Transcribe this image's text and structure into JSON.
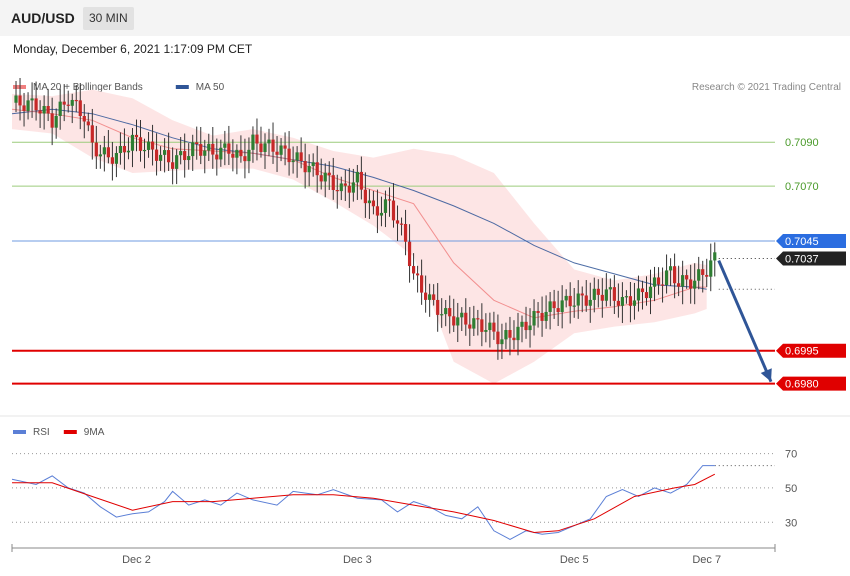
{
  "header": {
    "pair": "AUD/USD",
    "timeframe": "30 MIN",
    "timestamp": "Monday, December 6, 2021 1:17:09 PM CET"
  },
  "legend": {
    "main": [
      {
        "label": "MA 20 + Bollinger Bands",
        "color": "#f08080"
      },
      {
        "label": "MA 50",
        "color": "#2f5597"
      }
    ],
    "rsi": [
      {
        "label": "RSI",
        "color": "#5b7fd6"
      },
      {
        "label": "9MA",
        "color": "#e00000"
      }
    ]
  },
  "copyright": "Research © 2021 Trading Central",
  "chart_data": [
    {
      "type": "candlestick",
      "ylim": [
        0.6968,
        0.7122
      ],
      "levels": [
        {
          "value": 0.709,
          "label": "0.7090",
          "color": "#9ccc7c",
          "kind": "resistance"
        },
        {
          "value": 0.707,
          "label": "0.7070",
          "color": "#9ccc7c",
          "kind": "resistance"
        },
        {
          "value": 0.7045,
          "label": "0.7045",
          "color": "#6f9be0",
          "kind": "pivot",
          "tag_color": "#2b6de0"
        },
        {
          "value": 0.7037,
          "label": "0.7037",
          "color": "#222222",
          "kind": "last",
          "tag_color": "#222222"
        },
        {
          "value": 0.6995,
          "label": "0.6995",
          "color": "#e00000",
          "kind": "support",
          "tag_color": "#e00000"
        },
        {
          "value": 0.698,
          "label": "0.6980",
          "color": "#e00000",
          "kind": "support",
          "tag_color": "#e00000"
        }
      ],
      "close_path": [
        [
          0,
          0.7108
        ],
        [
          6,
          0.7107
        ],
        [
          10,
          0.71
        ],
        [
          14,
          0.711
        ],
        [
          18,
          0.7102
        ],
        [
          20,
          0.7088
        ],
        [
          24,
          0.7083
        ],
        [
          27,
          0.7085
        ],
        [
          30,
          0.7091
        ],
        [
          34,
          0.7087
        ],
        [
          40,
          0.7081
        ],
        [
          46,
          0.7088
        ],
        [
          50,
          0.7085
        ],
        [
          54,
          0.7087
        ],
        [
          57,
          0.7082
        ],
        [
          60,
          0.709
        ],
        [
          66,
          0.7087
        ],
        [
          72,
          0.7081
        ],
        [
          78,
          0.7074
        ],
        [
          82,
          0.7068
        ],
        [
          86,
          0.7073
        ],
        [
          90,
          0.7058
        ],
        [
          94,
          0.7062
        ],
        [
          98,
          0.7045
        ],
        [
          100,
          0.7029
        ],
        [
          104,
          0.7018
        ],
        [
          108,
          0.7011
        ],
        [
          112,
          0.7009
        ],
        [
          118,
          0.7006
        ],
        [
          122,
          0.7
        ],
        [
          126,
          0.7004
        ],
        [
          130,
          0.701
        ],
        [
          136,
          0.7016
        ],
        [
          140,
          0.7018
        ],
        [
          144,
          0.7019
        ],
        [
          148,
          0.7022
        ],
        [
          152,
          0.7017
        ],
        [
          156,
          0.702
        ],
        [
          160,
          0.7025
        ],
        [
          164,
          0.7031
        ],
        [
          166,
          0.7026
        ],
        [
          170,
          0.7027
        ],
        [
          173,
          0.7032
        ],
        [
          175,
          0.7037
        ]
      ],
      "series": [
        {
          "name": "MA 50",
          "color": "#2f5597",
          "points": [
            [
              0,
              0.7103
            ],
            [
              10,
              0.7105
            ],
            [
              20,
              0.7103
            ],
            [
              30,
              0.7098
            ],
            [
              40,
              0.7092
            ],
            [
              50,
              0.7087
            ],
            [
              60,
              0.7085
            ],
            [
              70,
              0.7082
            ],
            [
              80,
              0.7079
            ],
            [
              90,
              0.7074
            ],
            [
              100,
              0.7068
            ],
            [
              110,
              0.7061
            ],
            [
              120,
              0.7053
            ],
            [
              130,
              0.7043
            ],
            [
              140,
              0.7035
            ],
            [
              150,
              0.703
            ],
            [
              160,
              0.7025
            ],
            [
              170,
              0.7024
            ],
            [
              173,
              0.7023
            ]
          ]
        },
        {
          "name": "MA 20",
          "color": "#f08080",
          "points": [
            [
              0,
              0.7105
            ],
            [
              10,
              0.7103
            ],
            [
              20,
              0.71
            ],
            [
              30,
              0.7092
            ],
            [
              40,
              0.7087
            ],
            [
              50,
              0.7086
            ],
            [
              60,
              0.7085
            ],
            [
              70,
              0.7082
            ],
            [
              80,
              0.7074
            ],
            [
              90,
              0.7068
            ],
            [
              100,
              0.7062
            ],
            [
              110,
              0.7035
            ],
            [
              120,
              0.7018
            ],
            [
              130,
              0.701
            ],
            [
              140,
              0.7013
            ],
            [
              150,
              0.7015
            ],
            [
              160,
              0.7018
            ],
            [
              170,
              0.7024
            ],
            [
              173,
              0.7024
            ]
          ]
        },
        {
          "name": "Bollinger Upper",
          "points": [
            [
              0,
              0.7112
            ],
            [
              10,
              0.7111
            ],
            [
              20,
              0.7114
            ],
            [
              30,
              0.711
            ],
            [
              40,
              0.71
            ],
            [
              50,
              0.7093
            ],
            [
              60,
              0.7096
            ],
            [
              70,
              0.7092
            ],
            [
              80,
              0.7086
            ],
            [
              90,
              0.7083
            ],
            [
              100,
              0.7087
            ],
            [
              110,
              0.7084
            ],
            [
              120,
              0.7076
            ],
            [
              130,
              0.7053
            ],
            [
              140,
              0.7032
            ],
            [
              150,
              0.7027
            ],
            [
              160,
              0.703
            ],
            [
              170,
              0.7035
            ],
            [
              173,
              0.7034
            ]
          ]
        },
        {
          "name": "Bollinger Lower",
          "points": [
            [
              0,
              0.7096
            ],
            [
              10,
              0.7094
            ],
            [
              20,
              0.7083
            ],
            [
              30,
              0.7076
            ],
            [
              40,
              0.7077
            ],
            [
              50,
              0.7078
            ],
            [
              60,
              0.7078
            ],
            [
              70,
              0.7073
            ],
            [
              80,
              0.7063
            ],
            [
              90,
              0.7052
            ],
            [
              100,
              0.7038
            ],
            [
              110,
              0.699
            ],
            [
              120,
              0.698
            ],
            [
              130,
              0.699
            ],
            [
              140,
              0.7003
            ],
            [
              150,
              0.7006
            ],
            [
              160,
              0.7008
            ],
            [
              170,
              0.7012
            ],
            [
              173,
              0.7014
            ]
          ]
        }
      ],
      "projection": {
        "from": [
          175,
          0.7037
        ],
        "to": [
          190,
          0.698
        ],
        "color": "#2f5597"
      }
    },
    {
      "type": "line",
      "ylim": [
        15,
        75
      ],
      "yticks": [
        70,
        50,
        30
      ],
      "xticks": [
        {
          "x": 31,
          "label": "Dec 2"
        },
        {
          "x": 86,
          "label": "Dec 3"
        },
        {
          "x": 140,
          "label": "Dec 5"
        },
        {
          "x": 173,
          "label": "Dec 7"
        }
      ],
      "xlim": [
        0,
        190
      ],
      "series": [
        {
          "name": "RSI",
          "color": "#5b7fd6",
          "points": [
            [
              0,
              55
            ],
            [
              6,
              52
            ],
            [
              10,
              57
            ],
            [
              14,
              50
            ],
            [
              18,
              47
            ],
            [
              22,
              39
            ],
            [
              26,
              33
            ],
            [
              30,
              35
            ],
            [
              34,
              36
            ],
            [
              38,
              42
            ],
            [
              40,
              48
            ],
            [
              44,
              40
            ],
            [
              48,
              43
            ],
            [
              52,
              40
            ],
            [
              56,
              47
            ],
            [
              60,
              43
            ],
            [
              66,
              40
            ],
            [
              70,
              48
            ],
            [
              76,
              46
            ],
            [
              80,
              49
            ],
            [
              86,
              44
            ],
            [
              92,
              43
            ],
            [
              96,
              36
            ],
            [
              100,
              42
            ],
            [
              104,
              39
            ],
            [
              108,
              34
            ],
            [
              112,
              32
            ],
            [
              116,
              39
            ],
            [
              120,
              25
            ],
            [
              124,
              20
            ],
            [
              128,
              25
            ],
            [
              132,
              23
            ],
            [
              136,
              24
            ],
            [
              140,
              28
            ],
            [
              144,
              32
            ],
            [
              148,
              45
            ],
            [
              152,
              49
            ],
            [
              156,
              45
            ],
            [
              160,
              50
            ],
            [
              164,
              47
            ],
            [
              168,
              52
            ],
            [
              172,
              63
            ],
            [
              175,
              63
            ]
          ]
        },
        {
          "name": "9MA",
          "color": "#e00000",
          "points": [
            [
              0,
              53
            ],
            [
              10,
              53
            ],
            [
              20,
              45
            ],
            [
              30,
              37
            ],
            [
              40,
              42
            ],
            [
              50,
              42
            ],
            [
              60,
              44
            ],
            [
              70,
              46
            ],
            [
              80,
              46
            ],
            [
              90,
              44
            ],
            [
              100,
              40
            ],
            [
              110,
              36
            ],
            [
              120,
              31
            ],
            [
              130,
              24
            ],
            [
              136,
              25
            ],
            [
              145,
              32
            ],
            [
              155,
              45
            ],
            [
              165,
              50
            ],
            [
              170,
              52
            ],
            [
              175,
              58
            ]
          ]
        }
      ]
    }
  ]
}
